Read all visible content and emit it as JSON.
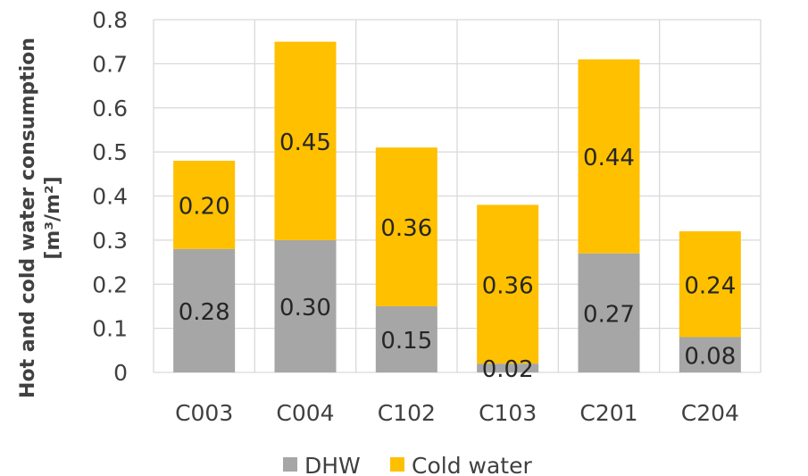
{
  "chart_data": {
    "type": "bar",
    "stacked": true,
    "categories": [
      "C003",
      "C004",
      "C102",
      "C103",
      "C201",
      "C204"
    ],
    "series": [
      {
        "name": "DHW",
        "values": [
          0.28,
          0.3,
          0.15,
          0.02,
          0.27,
          0.08
        ],
        "labels": [
          "0.28",
          "0.30",
          "0.15",
          "0.02",
          "0.27",
          "0.08"
        ],
        "color": "#a6a6a6"
      },
      {
        "name": "Cold water",
        "values": [
          0.2,
          0.45,
          0.36,
          0.36,
          0.44,
          0.24
        ],
        "labels": [
          "0.20",
          "0.45",
          "0.36",
          "0.36",
          "0.44",
          "0.24"
        ],
        "color": "#ffc000"
      }
    ],
    "ylabel_line1": "Hot and cold water consumption",
    "ylabel_line2": "[m³/m²]",
    "ylim": [
      0,
      0.8
    ],
    "yticks": [
      {
        "value": 0,
        "label": "0"
      },
      {
        "value": 0.1,
        "label": "0.1"
      },
      {
        "value": 0.2,
        "label": "0.2"
      },
      {
        "value": 0.3,
        "label": "0.3"
      },
      {
        "value": 0.4,
        "label": "0.4"
      },
      {
        "value": 0.5,
        "label": "0.5"
      },
      {
        "value": 0.6,
        "label": "0.6"
      },
      {
        "value": 0.7,
        "label": "0.7"
      },
      {
        "value": 0.8,
        "label": "0.8"
      }
    ],
    "grid": true,
    "legend_position": "bottom"
  }
}
